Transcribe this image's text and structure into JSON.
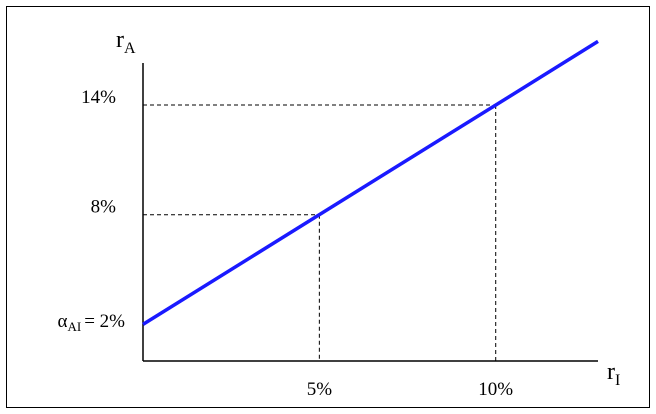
{
  "chart_data": {
    "type": "line",
    "xlabel": "r",
    "xlabel_sub": "I",
    "ylabel": "r",
    "ylabel_sub": "A",
    "xlim": [
      0,
      12.9
    ],
    "ylim": [
      0,
      16.3
    ],
    "grid": false,
    "series": [
      {
        "x": [
          0,
          12.9
        ],
        "y": [
          2,
          17.48
        ],
        "color": "#1a1aff"
      }
    ],
    "reference_points": [
      {
        "x": 5,
        "y": 8,
        "x_label": "5%",
        "y_label": "8%"
      },
      {
        "x": 10,
        "y": 14,
        "x_label": "10%",
        "y_label": "14%"
      }
    ],
    "intercept": {
      "value": 2,
      "symbol": "α",
      "symbol_sub": "AI",
      "text": "= 2%"
    },
    "colors": {
      "line": "#1a1aff",
      "axes": "#000000",
      "guides": "#000000"
    }
  }
}
